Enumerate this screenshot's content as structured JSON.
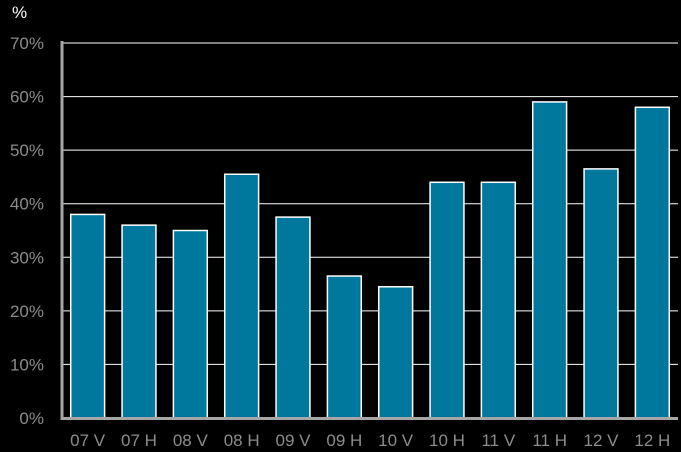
{
  "chart_data": {
    "type": "bar",
    "ylabel": "%",
    "categories": [
      "07 V",
      "07 H",
      "08 V",
      "08 H",
      "09 V",
      "09 H",
      "10 V",
      "10 H",
      "11 V",
      "11 H",
      "12 V",
      "12 H"
    ],
    "values": [
      38,
      36,
      35,
      45.5,
      37.5,
      26.5,
      24.5,
      44,
      44,
      59,
      46.5,
      58
    ],
    "ylim": [
      0,
      70
    ],
    "yticks": [
      0,
      10,
      20,
      30,
      40,
      50,
      60,
      70
    ],
    "ytick_labels": [
      "0%",
      "10%",
      "20%",
      "30%",
      "40%",
      "50%",
      "60%",
      "70%"
    ],
    "grid": true,
    "legend": "none"
  },
  "colors": {
    "background": "#000000",
    "bar_fill": "#00789e",
    "bar_stroke": "#ffffff",
    "gridline": "#ffffff",
    "axis": "#a6a6a6",
    "tick_text": "#8c8c8c",
    "unit_text": "#ffffff"
  }
}
